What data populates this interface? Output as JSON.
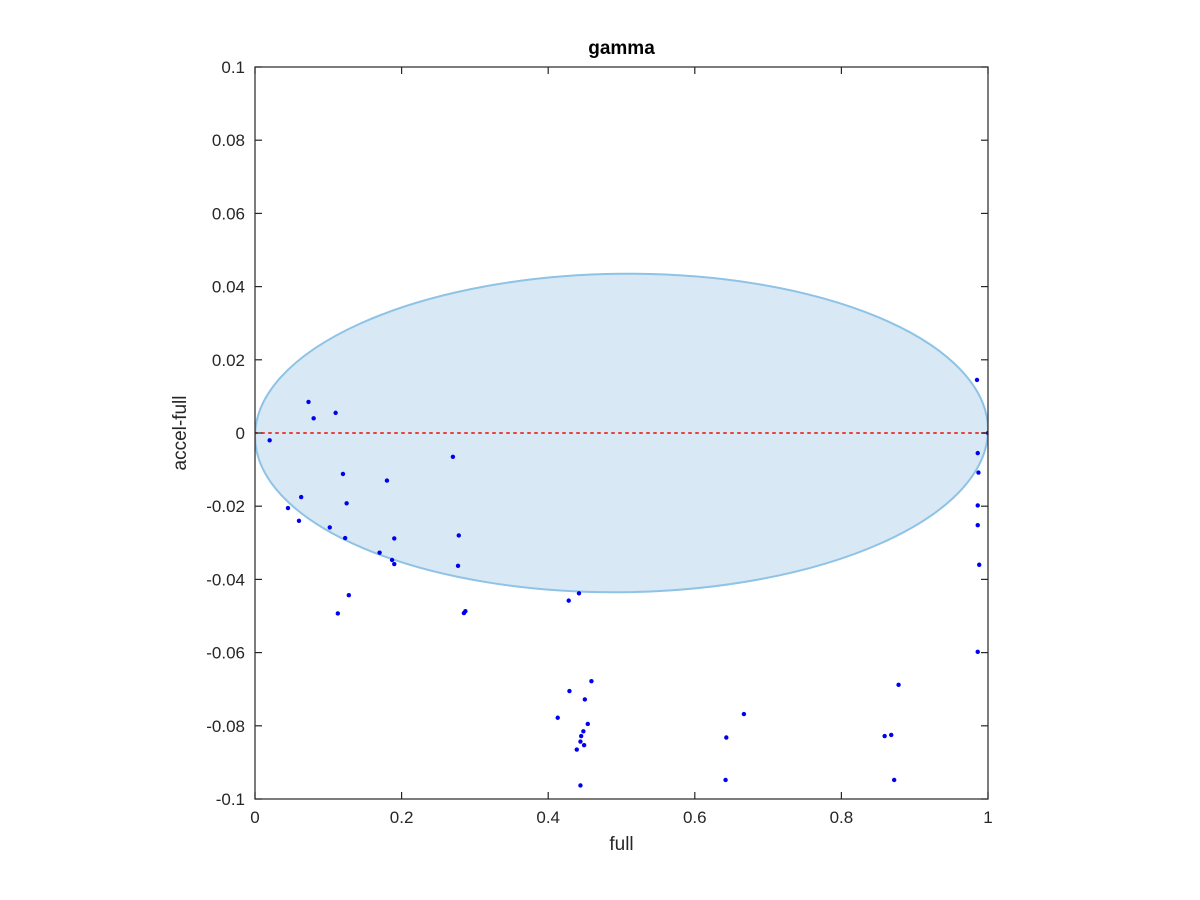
{
  "chart_data": {
    "type": "scatter",
    "title": "gamma",
    "xlabel": "full",
    "ylabel": "accel-full",
    "xlim": [
      0,
      1
    ],
    "ylim": [
      -0.1,
      0.1
    ],
    "xticks": [
      0,
      0.2,
      0.4,
      0.6,
      0.8,
      1
    ],
    "xtick_labels": [
      "0",
      "0.2",
      "0.4",
      "0.6",
      "0.8",
      "1"
    ],
    "yticks": [
      0.1,
      0.08,
      0.06,
      0.04,
      0.02,
      0,
      -0.02,
      -0.04,
      -0.06,
      -0.08,
      -0.1
    ],
    "ytick_labels": [
      "0.1",
      "0.08",
      "0.06",
      "0.04",
      "0.02",
      "0",
      "-0.02",
      "-0.04",
      "-0.06",
      "-0.08",
      "-0.1"
    ],
    "grid": false,
    "reference_line": {
      "y": 0,
      "color": "#e8403a",
      "style": "dotted"
    },
    "ellipse": {
      "center": [
        0.5,
        0
      ],
      "semi_axis_x": 0.5,
      "semi_axis_y": 0.0435,
      "rotation_deg": -0.6,
      "fill": "#d8e8f5",
      "edge": "#8ec3e6"
    },
    "series": [
      {
        "color": "#0000ee",
        "points": [
          [
            0.02,
            -0.002
          ],
          [
            0.073,
            0.0085
          ],
          [
            0.08,
            0.004
          ],
          [
            0.11,
            0.0055
          ],
          [
            0.12,
            -0.0112
          ],
          [
            0.18,
            -0.013
          ],
          [
            0.27,
            -0.0065
          ],
          [
            0.063,
            -0.0175
          ],
          [
            0.045,
            -0.0205
          ],
          [
            0.06,
            -0.024
          ],
          [
            0.102,
            -0.0258
          ],
          [
            0.125,
            -0.0192
          ],
          [
            0.123,
            -0.0287
          ],
          [
            0.19,
            -0.0288
          ],
          [
            0.17,
            -0.0327
          ],
          [
            0.187,
            -0.0347
          ],
          [
            0.19,
            -0.0358
          ],
          [
            0.278,
            -0.028
          ],
          [
            0.277,
            -0.0363
          ],
          [
            0.128,
            -0.0443
          ],
          [
            0.113,
            -0.0493
          ],
          [
            0.285,
            -0.0492
          ],
          [
            0.287,
            -0.0487
          ],
          [
            0.428,
            -0.0458
          ],
          [
            0.442,
            -0.0438
          ],
          [
            0.459,
            -0.0678
          ],
          [
            0.429,
            -0.0705
          ],
          [
            0.45,
            -0.0728
          ],
          [
            0.413,
            -0.0778
          ],
          [
            0.454,
            -0.0795
          ],
          [
            0.448,
            -0.0815
          ],
          [
            0.445,
            -0.0828
          ],
          [
            0.444,
            -0.0843
          ],
          [
            0.449,
            -0.0853
          ],
          [
            0.439,
            -0.0865
          ],
          [
            0.444,
            -0.0963
          ],
          [
            0.643,
            -0.0832
          ],
          [
            0.642,
            -0.0948
          ],
          [
            0.667,
            -0.0768
          ],
          [
            0.859,
            -0.0828
          ],
          [
            0.868,
            -0.0825
          ],
          [
            0.878,
            -0.0688
          ],
          [
            0.872,
            -0.0948
          ],
          [
            0.985,
            0.0145
          ],
          [
            1.0,
            0.0
          ],
          [
            0.986,
            -0.0055
          ],
          [
            0.987,
            -0.0108
          ],
          [
            0.986,
            -0.0198
          ],
          [
            0.986,
            -0.0252
          ],
          [
            0.988,
            -0.036
          ],
          [
            0.986,
            -0.0598
          ]
        ]
      }
    ]
  }
}
